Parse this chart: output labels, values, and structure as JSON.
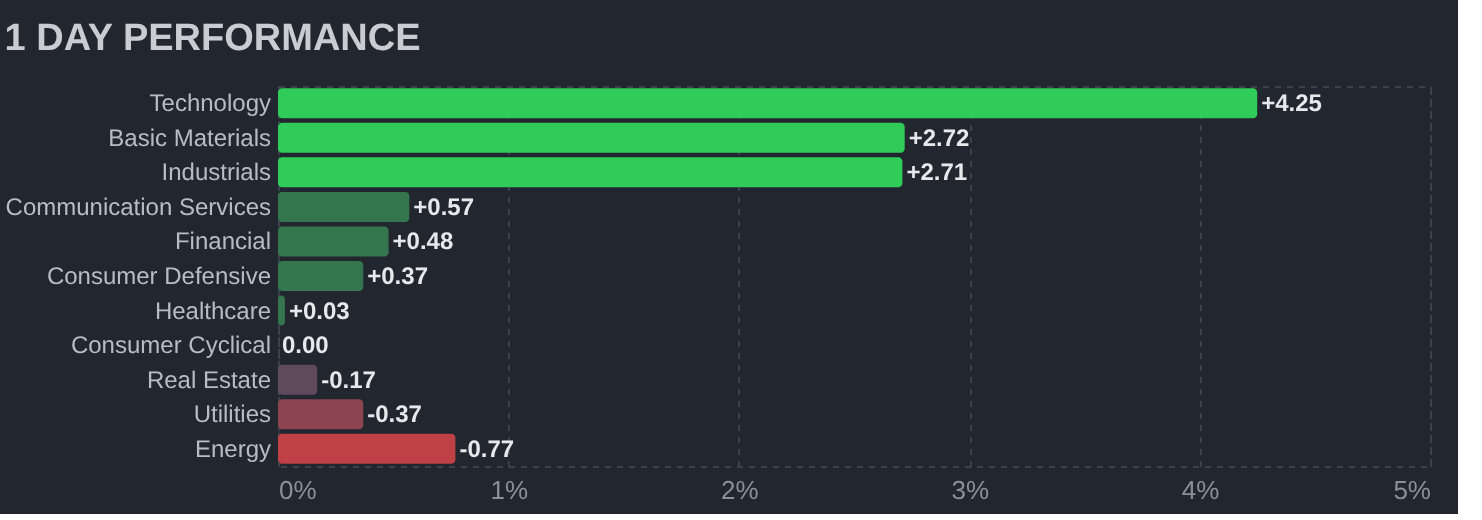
{
  "chart_data": {
    "type": "bar",
    "orientation": "horizontal",
    "title": "1 DAY PERFORMANCE",
    "categories": [
      "Technology",
      "Basic Materials",
      "Industrials",
      "Communication Services",
      "Financial",
      "Consumer Defensive",
      "Healthcare",
      "Consumer Cyclical",
      "Real Estate",
      "Utilities",
      "Energy"
    ],
    "values": [
      4.25,
      2.72,
      2.71,
      0.57,
      0.48,
      0.37,
      0.03,
      0.0,
      -0.17,
      -0.37,
      -0.77
    ],
    "base": [
      null,
      null,
      null,
      null,
      null,
      null,
      null,
      null,
      0.17,
      0.37,
      0.77
    ],
    "value_labels": [
      "+4.25",
      "+2.72",
      "+2.71",
      "+0.57",
      "+0.48",
      "+0.37",
      "+0.03",
      "0.00",
      "-0.17",
      "-0.37",
      "-0.77"
    ],
    "colors": [
      "#30cc5a",
      "#30cc5a",
      "#30cc5a",
      "#35764e",
      "#35764e",
      "#35764e",
      "#35764e",
      "#35764e",
      "#5e4a5c",
      "#8b4450",
      "#bf4045"
    ],
    "xlim": [
      0,
      5
    ],
    "xticks": [
      {
        "value": 0,
        "label": "0%"
      },
      {
        "value": 1,
        "label": "1%"
      },
      {
        "value": 2,
        "label": "2%"
      },
      {
        "value": 3,
        "label": "3%"
      },
      {
        "value": 4,
        "label": "4%"
      },
      {
        "value": 5,
        "label": "5%"
      }
    ],
    "grid": "x"
  }
}
